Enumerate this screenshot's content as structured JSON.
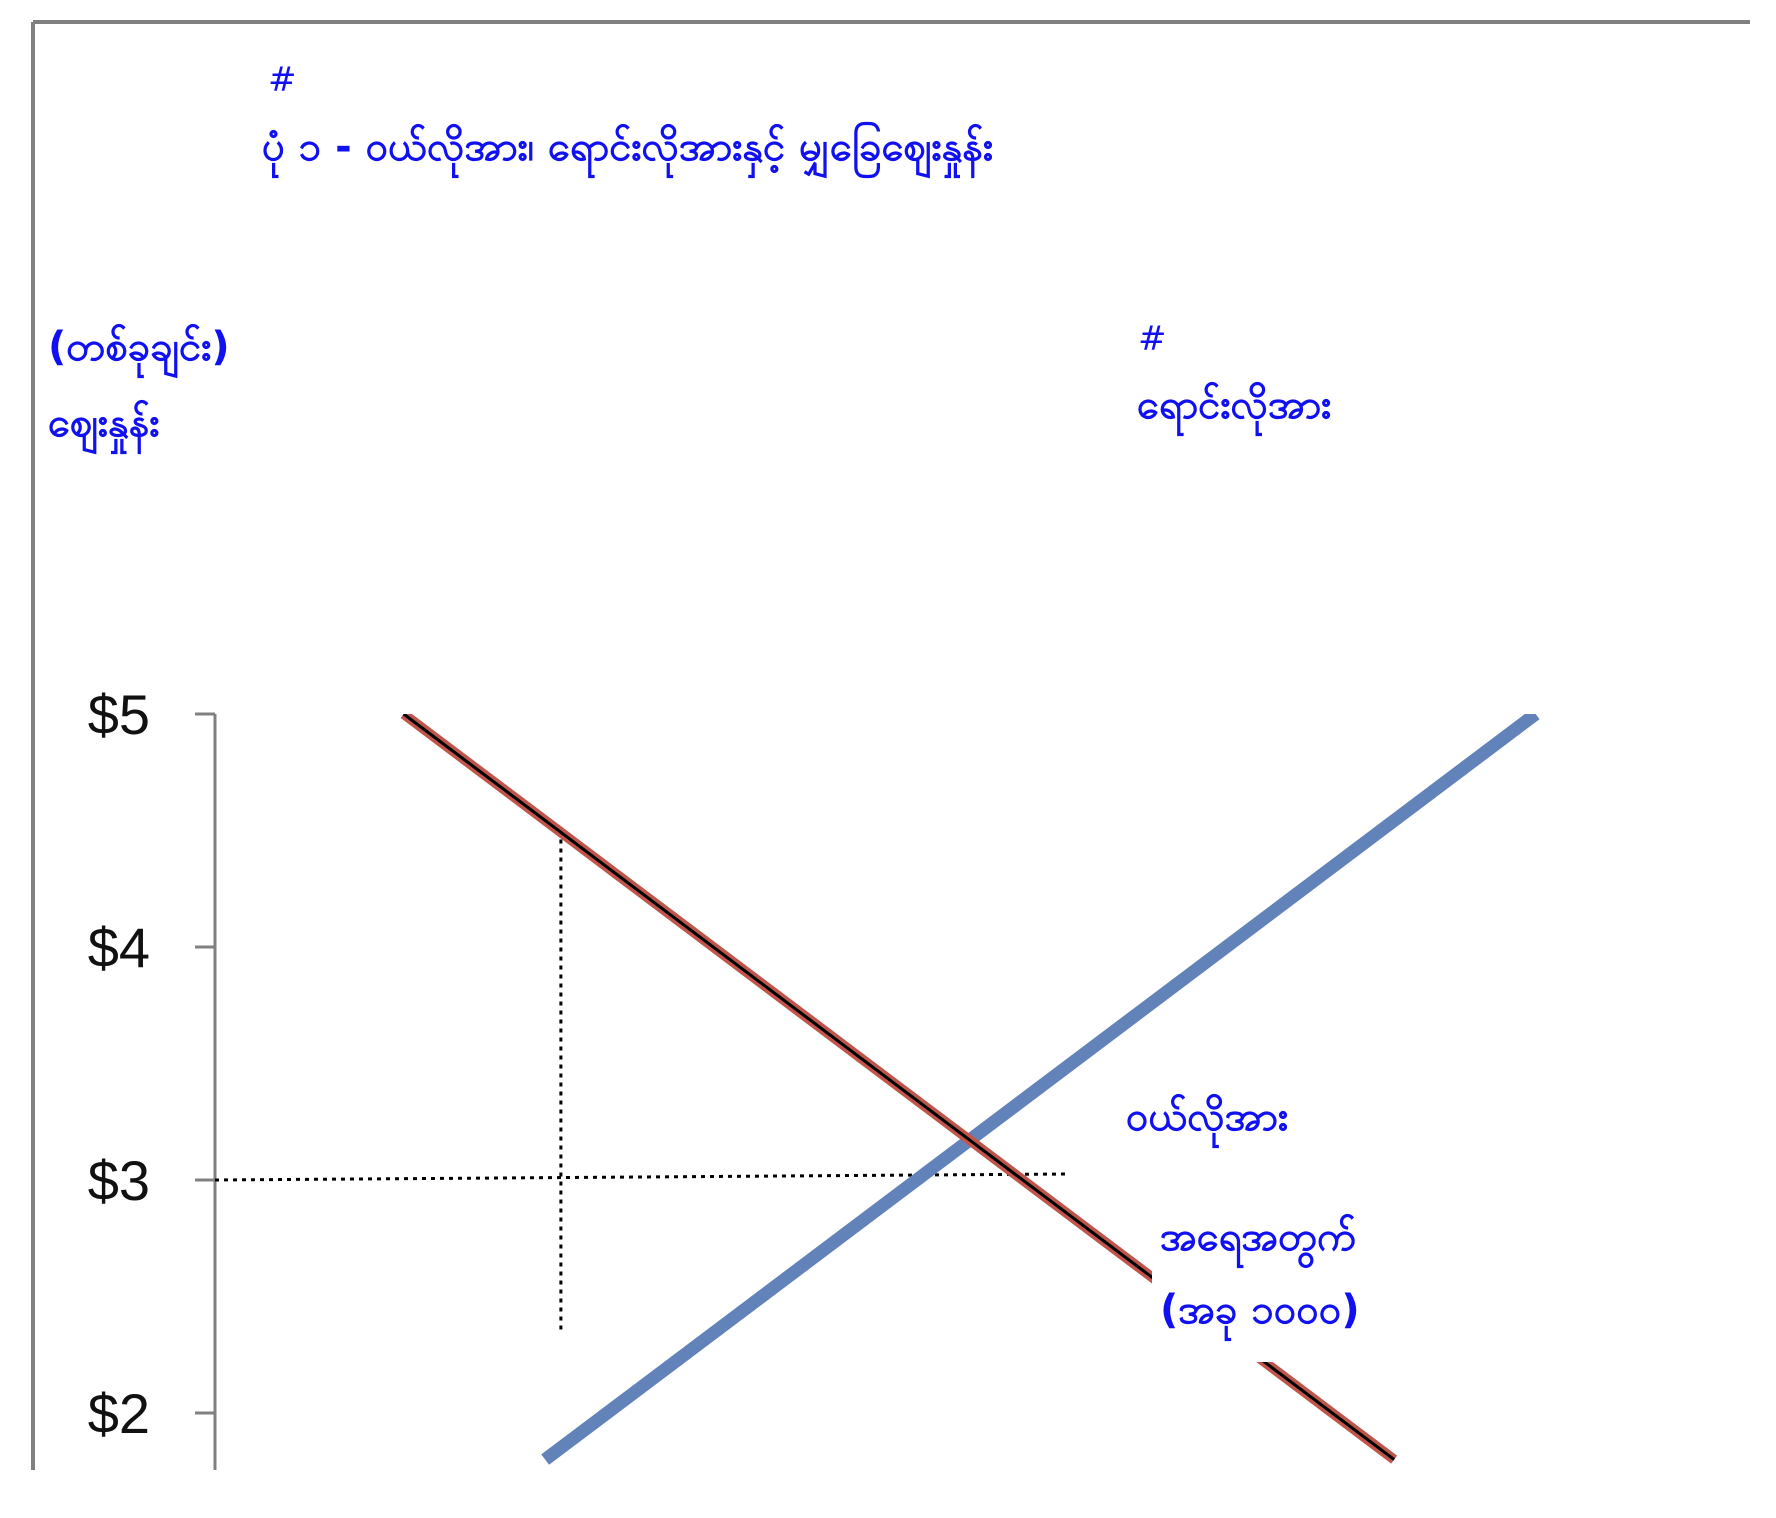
{
  "title_marker": "#",
  "title": "ပုံ ၁ - ဝယ်လိုအား၊ ရောင်းလိုအားနှင့် မျှခြေဈေးနှုန်း",
  "y_axis_label_line1": "(တစ်ခုချင်း)",
  "y_axis_label_line2": "ဈေးနှုန်း",
  "supply_marker": "#",
  "supply_label": "ရောင်းလိုအား",
  "demand_label": "ဝယ်လိုအား",
  "quantity_label_line1": "အရေအတွက်",
  "quantity_label_line2": "(အခု ၁၀၀၀)",
  "colors": {
    "label_blue": "#1010f0",
    "supply_line": "#6283ba",
    "demand_outer": "#c0564b",
    "demand_inner": "#000000"
  },
  "chart_data": {
    "type": "line",
    "yticks": [
      "$5",
      "$4",
      "$3",
      "$2"
    ],
    "ytick_values": [
      5,
      4,
      3,
      2
    ],
    "ylim": [
      1.8,
      5
    ],
    "series": [
      {
        "name": "ရောင်းလိုအား",
        "role": "supply",
        "points": [
          [
            2.1,
            1.8
          ],
          [
            8.4,
            5.0
          ]
        ]
      },
      {
        "name": "ဝယ်လိုအား",
        "role": "demand",
        "points": [
          [
            1.2,
            5.0
          ],
          [
            7.5,
            1.8
          ]
        ]
      }
    ],
    "equilibrium_price": 3,
    "reference_price_line": 3,
    "reference_quantity_line": 2.2,
    "reference_quantity_line_yrange": [
      2.35,
      4.5
    ]
  }
}
